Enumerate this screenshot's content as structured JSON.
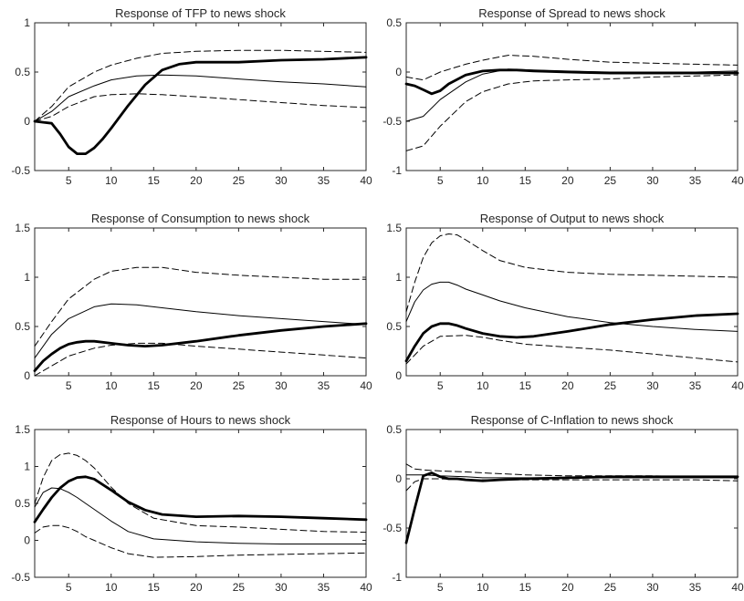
{
  "chart_data": [
    {
      "type": "line",
      "title": "Response of TFP to news shock",
      "xlim": [
        1,
        40
      ],
      "ylim": [
        -0.5,
        1
      ],
      "xticks": [
        5,
        10,
        15,
        20,
        25,
        30,
        35,
        40
      ],
      "yticks": [
        -0.5,
        0,
        0.5,
        1
      ],
      "ytick_labels": [
        "-0.5",
        "0",
        "0.5",
        "1"
      ],
      "grid": false,
      "series": [
        {
          "role": "upper",
          "style": "dashed",
          "x": [
            1,
            3,
            5,
            8,
            10,
            13,
            16,
            20,
            25,
            30,
            35,
            40
          ],
          "y": [
            0,
            0.15,
            0.35,
            0.5,
            0.57,
            0.64,
            0.69,
            0.71,
            0.72,
            0.72,
            0.71,
            0.7
          ]
        },
        {
          "role": "median",
          "style": "thin",
          "x": [
            1,
            3,
            5,
            8,
            10,
            13,
            16,
            20,
            25,
            30,
            35,
            40
          ],
          "y": [
            0,
            0.1,
            0.25,
            0.36,
            0.42,
            0.46,
            0.47,
            0.46,
            0.43,
            0.4,
            0.38,
            0.35
          ]
        },
        {
          "role": "lower",
          "style": "dashed",
          "x": [
            1,
            3,
            5,
            8,
            10,
            13,
            16,
            20,
            25,
            30,
            35,
            40
          ],
          "y": [
            0,
            0.05,
            0.15,
            0.25,
            0.27,
            0.28,
            0.27,
            0.25,
            0.22,
            0.19,
            0.16,
            0.14
          ]
        },
        {
          "role": "model",
          "style": "thick",
          "x": [
            1,
            2,
            3,
            4,
            5,
            6,
            7,
            8,
            9,
            10,
            12,
            14,
            16,
            18,
            20,
            25,
            30,
            35,
            40
          ],
          "y": [
            0,
            -0.01,
            -0.02,
            -0.13,
            -0.26,
            -0.33,
            -0.33,
            -0.27,
            -0.18,
            -0.07,
            0.16,
            0.37,
            0.52,
            0.58,
            0.6,
            0.6,
            0.62,
            0.63,
            0.65
          ]
        }
      ]
    },
    {
      "type": "line",
      "title": "Response of Spread to news shock",
      "xlim": [
        1,
        40
      ],
      "ylim": [
        -1,
        0.5
      ],
      "xticks": [
        5,
        10,
        15,
        20,
        25,
        30,
        35,
        40
      ],
      "yticks": [
        -1,
        -0.5,
        0,
        0.5
      ],
      "ytick_labels": [
        "-1",
        "-0.5",
        "0",
        "0.5"
      ],
      "grid": false,
      "series": [
        {
          "role": "upper",
          "style": "dashed",
          "x": [
            1,
            3,
            5,
            8,
            10,
            13,
            16,
            20,
            25,
            30,
            35,
            40
          ],
          "y": [
            -0.05,
            -0.08,
            0,
            0.08,
            0.12,
            0.17,
            0.16,
            0.13,
            0.1,
            0.09,
            0.08,
            0.07
          ]
        },
        {
          "role": "median",
          "style": "thin",
          "x": [
            1,
            3,
            5,
            8,
            10,
            13,
            16,
            20,
            25,
            30,
            35,
            40
          ],
          "y": [
            -0.5,
            -0.45,
            -0.28,
            -0.1,
            -0.02,
            0.03,
            0.02,
            0.01,
            0,
            0,
            0,
            0.01
          ]
        },
        {
          "role": "lower",
          "style": "dashed",
          "x": [
            1,
            3,
            5,
            8,
            10,
            13,
            16,
            20,
            25,
            30,
            35,
            40
          ],
          "y": [
            -0.8,
            -0.75,
            -0.55,
            -0.3,
            -0.2,
            -0.12,
            -0.09,
            -0.08,
            -0.07,
            -0.05,
            -0.04,
            -0.03
          ]
        },
        {
          "role": "model",
          "style": "thick",
          "x": [
            1,
            2,
            3,
            4,
            5,
            6,
            8,
            10,
            12,
            14,
            16,
            20,
            25,
            30,
            35,
            40
          ],
          "y": [
            -0.12,
            -0.14,
            -0.18,
            -0.22,
            -0.19,
            -0.12,
            -0.03,
            0.01,
            0.02,
            0.02,
            0.01,
            0,
            -0.01,
            -0.01,
            -0.01,
            -0.01
          ]
        }
      ]
    },
    {
      "type": "line",
      "title": "Response of Consumption to news shock",
      "xlim": [
        1,
        40
      ],
      "ylim": [
        0,
        1.5
      ],
      "xticks": [
        5,
        10,
        15,
        20,
        25,
        30,
        35,
        40
      ],
      "yticks": [
        0,
        0.5,
        1,
        1.5
      ],
      "ytick_labels": [
        "0",
        "0.5",
        "1",
        "1.5"
      ],
      "grid": false,
      "series": [
        {
          "role": "upper",
          "style": "dashed",
          "x": [
            1,
            3,
            5,
            8,
            10,
            13,
            16,
            20,
            25,
            30,
            35,
            40
          ],
          "y": [
            0.3,
            0.55,
            0.78,
            0.98,
            1.06,
            1.1,
            1.1,
            1.05,
            1.02,
            1.0,
            0.98,
            0.98
          ]
        },
        {
          "role": "median",
          "style": "thin",
          "x": [
            1,
            3,
            5,
            8,
            10,
            13,
            16,
            20,
            25,
            30,
            35,
            40
          ],
          "y": [
            0.18,
            0.42,
            0.58,
            0.7,
            0.73,
            0.72,
            0.69,
            0.65,
            0.61,
            0.58,
            0.55,
            0.52
          ]
        },
        {
          "role": "lower",
          "style": "dashed",
          "x": [
            1,
            3,
            5,
            8,
            10,
            13,
            16,
            20,
            25,
            30,
            35,
            40
          ],
          "y": [
            0,
            0.1,
            0.2,
            0.28,
            0.31,
            0.33,
            0.33,
            0.3,
            0.27,
            0.24,
            0.21,
            0.18
          ]
        },
        {
          "role": "model",
          "style": "thick",
          "x": [
            1,
            2,
            3,
            4,
            5,
            6,
            7,
            8,
            10,
            12,
            14,
            16,
            20,
            25,
            30,
            35,
            40
          ],
          "y": [
            0.05,
            0.15,
            0.22,
            0.28,
            0.32,
            0.34,
            0.35,
            0.35,
            0.33,
            0.31,
            0.3,
            0.31,
            0.35,
            0.41,
            0.46,
            0.5,
            0.53
          ]
        }
      ]
    },
    {
      "type": "line",
      "title": "Response of Output to news shock",
      "xlim": [
        1,
        40
      ],
      "ylim": [
        0,
        1.5
      ],
      "xticks": [
        5,
        10,
        15,
        20,
        25,
        30,
        35,
        40
      ],
      "yticks": [
        0,
        0.5,
        1,
        1.5
      ],
      "ytick_labels": [
        "0",
        "0.5",
        "1",
        "1.5"
      ],
      "grid": false,
      "series": [
        {
          "role": "upper",
          "style": "dashed",
          "x": [
            1,
            2,
            3,
            4,
            5,
            6,
            7,
            8,
            10,
            12,
            15,
            20,
            25,
            30,
            35,
            40
          ],
          "y": [
            0.65,
            0.95,
            1.2,
            1.35,
            1.42,
            1.44,
            1.43,
            1.38,
            1.27,
            1.17,
            1.1,
            1.05,
            1.03,
            1.02,
            1.01,
            1.0
          ]
        },
        {
          "role": "median",
          "style": "thin",
          "x": [
            1,
            2,
            3,
            4,
            5,
            6,
            7,
            8,
            10,
            12,
            15,
            20,
            25,
            30,
            35,
            40
          ],
          "y": [
            0.55,
            0.75,
            0.87,
            0.93,
            0.95,
            0.95,
            0.92,
            0.88,
            0.82,
            0.76,
            0.69,
            0.6,
            0.54,
            0.5,
            0.47,
            0.45
          ]
        },
        {
          "role": "lower",
          "style": "dashed",
          "x": [
            1,
            3,
            5,
            8,
            10,
            12,
            15,
            20,
            25,
            30,
            35,
            40
          ],
          "y": [
            0.12,
            0.3,
            0.4,
            0.41,
            0.39,
            0.36,
            0.32,
            0.29,
            0.26,
            0.22,
            0.18,
            0.14
          ]
        },
        {
          "role": "model",
          "style": "thick",
          "x": [
            1,
            2,
            3,
            4,
            5,
            6,
            7,
            8,
            10,
            12,
            14,
            16,
            20,
            25,
            30,
            35,
            40
          ],
          "y": [
            0.15,
            0.3,
            0.43,
            0.5,
            0.53,
            0.53,
            0.51,
            0.48,
            0.43,
            0.4,
            0.39,
            0.4,
            0.45,
            0.52,
            0.57,
            0.61,
            0.63
          ]
        }
      ]
    },
    {
      "type": "line",
      "title": "Response of Hours to news shock",
      "xlim": [
        1,
        40
      ],
      "ylim": [
        -0.5,
        1.5
      ],
      "xticks": [
        5,
        10,
        15,
        20,
        25,
        30,
        35,
        40
      ],
      "yticks": [
        -0.5,
        0,
        0.5,
        1,
        1.5
      ],
      "ytick_labels": [
        "-0.5",
        "0",
        "0.5",
        "1",
        "1.5"
      ],
      "grid": false,
      "series": [
        {
          "role": "upper",
          "style": "dashed",
          "x": [
            1,
            2,
            3,
            4,
            5,
            6,
            7,
            8,
            10,
            12,
            15,
            20,
            25,
            30,
            35,
            40
          ],
          "y": [
            0.5,
            0.85,
            1.08,
            1.16,
            1.18,
            1.15,
            1.08,
            0.98,
            0.72,
            0.5,
            0.3,
            0.2,
            0.18,
            0.15,
            0.12,
            0.11
          ]
        },
        {
          "role": "median",
          "style": "thin",
          "x": [
            1,
            2,
            3,
            4,
            5,
            6,
            7,
            8,
            10,
            12,
            15,
            20,
            25,
            30,
            35,
            40
          ],
          "y": [
            0.45,
            0.65,
            0.71,
            0.7,
            0.65,
            0.58,
            0.5,
            0.42,
            0.26,
            0.12,
            0.02,
            -0.02,
            -0.04,
            -0.05,
            -0.05,
            -0.05
          ]
        },
        {
          "role": "lower",
          "style": "dashed",
          "x": [
            1,
            2,
            3,
            4,
            5,
            6,
            7,
            8,
            10,
            12,
            15,
            20,
            25,
            30,
            35,
            40
          ],
          "y": [
            0.1,
            0.18,
            0.2,
            0.2,
            0.17,
            0.12,
            0.05,
            0,
            -0.1,
            -0.18,
            -0.23,
            -0.22,
            -0.2,
            -0.19,
            -0.18,
            -0.17
          ]
        },
        {
          "role": "model",
          "style": "thick",
          "x": [
            1,
            2,
            3,
            4,
            5,
            6,
            7,
            8,
            10,
            12,
            14,
            16,
            20,
            25,
            30,
            35,
            40
          ],
          "y": [
            0.25,
            0.42,
            0.58,
            0.71,
            0.8,
            0.85,
            0.86,
            0.83,
            0.68,
            0.52,
            0.41,
            0.35,
            0.32,
            0.33,
            0.32,
            0.3,
            0.28
          ]
        }
      ]
    },
    {
      "type": "line",
      "title": "Response of C-Inflation to news shock",
      "xlim": [
        1,
        40
      ],
      "ylim": [
        -1,
        0.5
      ],
      "xticks": [
        5,
        10,
        15,
        20,
        25,
        30,
        35,
        40
      ],
      "yticks": [
        -1,
        -0.5,
        0,
        0.5
      ],
      "ytick_labels": [
        "-1",
        "-0.5",
        "0",
        "0.5"
      ],
      "grid": false,
      "series": [
        {
          "role": "upper",
          "style": "dashed",
          "x": [
            1,
            2,
            3,
            5,
            8,
            10,
            15,
            20,
            25,
            30,
            35,
            40
          ],
          "y": [
            0.15,
            0.1,
            0.09,
            0.08,
            0.07,
            0.06,
            0.04,
            0.03,
            0.03,
            0.03,
            0.02,
            0.02
          ]
        },
        {
          "role": "median",
          "style": "thin",
          "x": [
            1,
            2,
            3,
            5,
            8,
            10,
            15,
            20,
            25,
            30,
            35,
            40
          ],
          "y": [
            0.04,
            0.04,
            0.04,
            0.03,
            0.02,
            0.01,
            0.01,
            0.01,
            0.01,
            0.01,
            0.01,
            0.01
          ]
        },
        {
          "role": "lower",
          "style": "dashed",
          "x": [
            1,
            2,
            3,
            5,
            8,
            10,
            15,
            20,
            25,
            30,
            35,
            40
          ],
          "y": [
            -0.12,
            -0.03,
            0,
            0,
            -0.01,
            -0.01,
            -0.01,
            -0.01,
            -0.01,
            -0.01,
            -0.01,
            -0.02
          ]
        },
        {
          "role": "model",
          "style": "thick",
          "x": [
            1,
            2,
            3,
            4,
            5,
            6,
            7,
            8,
            10,
            12,
            15,
            20,
            25,
            30,
            35,
            40
          ],
          "y": [
            -0.65,
            -0.3,
            0.03,
            0.06,
            0.02,
            0,
            0,
            -0.01,
            -0.02,
            -0.01,
            0,
            0.01,
            0.02,
            0.02,
            0.02,
            0.02
          ]
        }
      ]
    }
  ]
}
